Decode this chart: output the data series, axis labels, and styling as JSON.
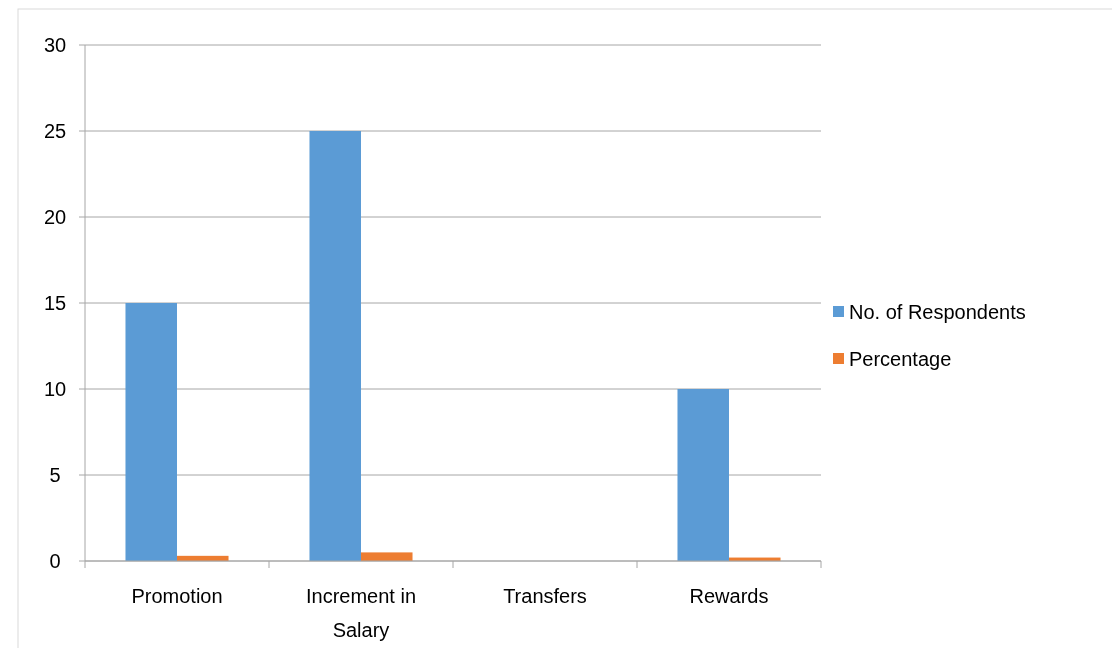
{
  "chart_data": {
    "type": "bar",
    "categories": [
      "Promotion",
      "Increment in Salary",
      "Transfers",
      "Rewards"
    ],
    "series": [
      {
        "name": "No. of Respondents",
        "color": "#5b9bd5",
        "values": [
          15,
          25,
          0,
          10
        ]
      },
      {
        "name": "Percentage",
        "color": "#ed7d31",
        "values": [
          0.3,
          0.5,
          0,
          0.2
        ]
      }
    ],
    "ylim": [
      0,
      30
    ],
    "yticks": [
      0,
      5,
      10,
      15,
      20,
      25,
      30
    ],
    "grid": "y",
    "legend": "right"
  }
}
